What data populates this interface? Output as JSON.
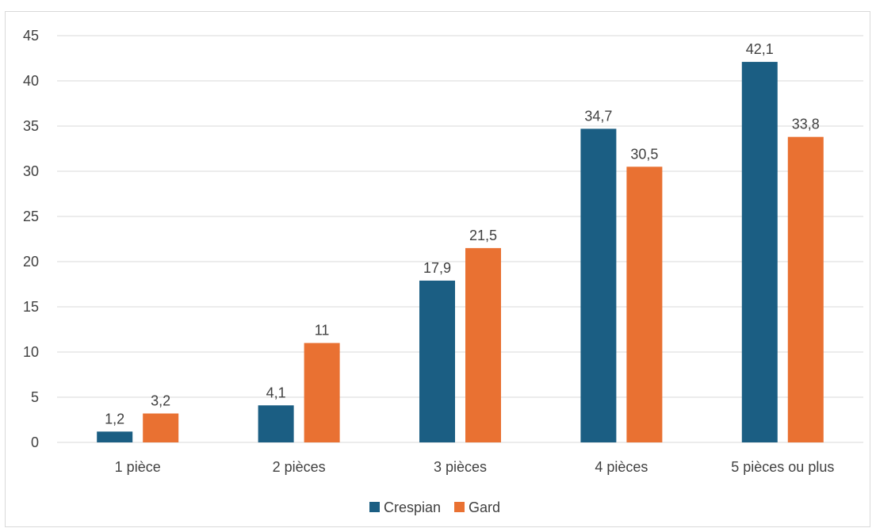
{
  "chart_data": {
    "type": "bar",
    "title": "",
    "xlabel": "",
    "ylabel": "",
    "categories": [
      "1 pièce",
      "2 pièces",
      "3 pièces",
      "4 pièces",
      "5 pièces ou plus"
    ],
    "series": [
      {
        "name": "Crespian",
        "color": "#1b5e83",
        "values": [
          1.2,
          4.1,
          17.9,
          34.7,
          42.1
        ],
        "labels": [
          "1,2",
          "4,1",
          "17,9",
          "34,7",
          "42,1"
        ]
      },
      {
        "name": "Gard",
        "color": "#e97132",
        "values": [
          3.2,
          11,
          21.5,
          30.5,
          33.8
        ],
        "labels": [
          "3,2",
          "11",
          "21,5",
          "30,5",
          "33,8"
        ]
      }
    ],
    "ylim": [
      0,
      45
    ],
    "yticks": [
      0,
      5,
      10,
      15,
      20,
      25,
      30,
      35,
      40,
      45
    ],
    "grid": true,
    "legend_position": "bottom"
  }
}
